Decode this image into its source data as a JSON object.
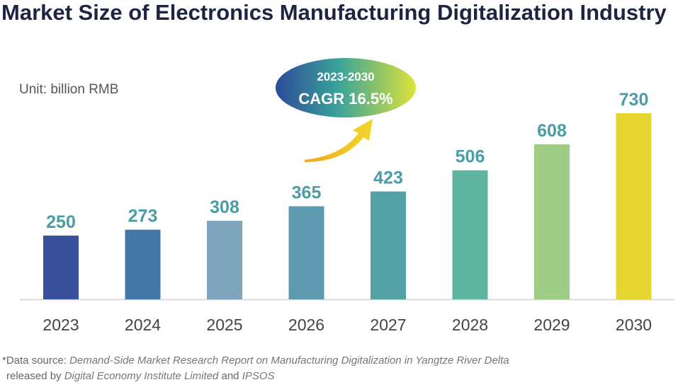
{
  "title": "Market Size of Electronics Manufacturing Digitalization Industry",
  "unit_label": "Unit: billion RMB",
  "cagr": {
    "period": "2023-2030",
    "label": "CAGR 16.5%"
  },
  "source": {
    "prefix": "*Data source: ",
    "report": "Demand-Side Market Research Report on Manufacturing Digitalization in Yangtze River Delta",
    "released_by": "released by ",
    "org1": "Digital Economy Institute Limited",
    "and": " and ",
    "org2": "IPSOS"
  },
  "chart_data": {
    "type": "bar",
    "title": "Market Size of Electronics Manufacturing Digitalization Industry",
    "xlabel": "",
    "ylabel": "billion RMB",
    "categories": [
      "2023",
      "2024",
      "2025",
      "2026",
      "2027",
      "2028",
      "2029",
      "2030"
    ],
    "values": [
      250,
      273,
      308,
      365,
      423,
      506,
      608,
      730
    ],
    "ylim": [
      0,
      730
    ],
    "grid": false,
    "legend": "none",
    "bar_colors": [
      "#3a509c",
      "#4377a8",
      "#7fa5bd",
      "#5e9bb0",
      "#55a2a6",
      "#5db5a0",
      "#9fcc87",
      "#e6d631"
    ],
    "label_color": "#4a9ca6",
    "tick_color": "#444444",
    "axis_color": "#d0d0d0"
  }
}
